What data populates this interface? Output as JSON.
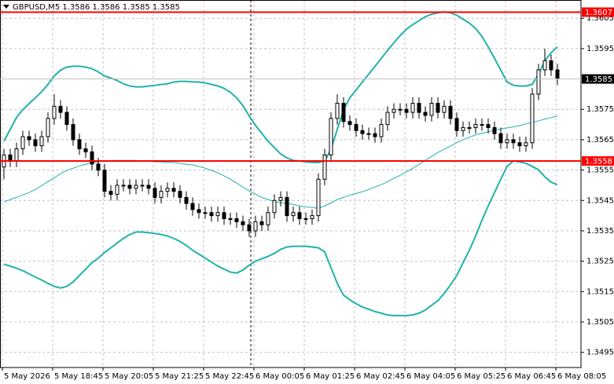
{
  "chart_data": {
    "type": "candlestick",
    "title": "GBPUSD,M5  1.3586 1.3586 1.3585 1.3585",
    "categories": [
      "5 May 2026",
      null,
      null,
      null,
      null,
      null,
      null,
      null,
      "5 May 18:45",
      null,
      null,
      null,
      null,
      null,
      null,
      null,
      "5 May 20:05",
      null,
      null,
      null,
      null,
      null,
      null,
      null,
      "5 May 21:25",
      null,
      null,
      null,
      null,
      null,
      null,
      null,
      "5 May 22:45",
      null,
      null,
      null,
      null,
      null,
      null,
      null,
      "6 May 00:05",
      null,
      null,
      null,
      null,
      null,
      null,
      null,
      "6 May 01:25",
      null,
      null,
      null,
      null,
      null,
      null,
      null,
      "6 May 02:45",
      null,
      null,
      null,
      null,
      null,
      null,
      null,
      "6 May 04:05",
      null,
      null,
      null,
      null,
      null,
      null,
      null,
      "6 May 05:25",
      null,
      null,
      null,
      null,
      null,
      null,
      null,
      "6 May 06:45",
      null,
      null,
      null,
      null,
      null,
      null,
      null,
      "6 May 08:05"
    ],
    "open": [
      1.3556,
      1.356,
      1.3558,
      1.3562,
      1.3566,
      1.3565,
      1.3563,
      1.3566,
      1.3572,
      1.3576,
      1.3574,
      1.357,
      1.3565,
      1.3562,
      1.3561,
      1.3557,
      1.3555,
      1.3548,
      1.3547,
      1.355,
      1.355,
      1.3549,
      1.355,
      1.355,
      1.3549,
      1.3546,
      1.3548,
      1.3549,
      1.3548,
      1.3546,
      1.3544,
      1.3542,
      1.3541,
      1.3541,
      1.354,
      1.3541,
      1.3539,
      1.3539,
      1.3538,
      1.3537,
      1.3535,
      1.3538,
      1.3537,
      1.3541,
      1.3545,
      1.3546,
      1.354,
      1.3541,
      1.3539,
      1.3539,
      1.354,
      1.3552,
      1.356,
      1.3572,
      1.3577,
      1.3571,
      1.357,
      1.3568,
      1.3567,
      1.3567,
      1.3566,
      1.357,
      1.3574,
      1.3575,
      1.3575,
      1.3574,
      1.3577,
      1.3574,
      1.3573,
      1.3577,
      1.3574,
      1.3576,
      1.3572,
      1.3568,
      1.3569,
      1.3569,
      1.357,
      1.357,
      1.3569,
      1.3567,
      1.3564,
      1.3565,
      1.3564,
      1.3563,
      1.3564,
      1.358,
      1.3588,
      1.3591,
      1.3588
    ],
    "high": [
      1.3562,
      1.3562,
      1.3564,
      1.3568,
      1.3568,
      1.3567,
      1.3568,
      1.3574,
      1.358,
      1.3578,
      1.3576,
      1.3572,
      1.3567,
      1.3564,
      1.3563,
      1.3559,
      1.3557,
      1.355,
      1.3552,
      1.3552,
      1.3552,
      1.3552,
      1.3552,
      1.3552,
      1.3551,
      1.355,
      1.3551,
      1.3551,
      1.355,
      1.3548,
      1.3546,
      1.3544,
      1.3543,
      1.3543,
      1.3543,
      1.3543,
      1.3541,
      1.3541,
      1.354,
      1.3539,
      1.354,
      1.354,
      1.3543,
      1.3547,
      1.3548,
      1.3548,
      1.3543,
      1.3543,
      1.3541,
      1.3542,
      1.3554,
      1.3562,
      1.3574,
      1.358,
      1.3579,
      1.3573,
      1.3572,
      1.357,
      1.3569,
      1.3569,
      1.3572,
      1.3576,
      1.3577,
      1.3577,
      1.3577,
      1.3579,
      1.3579,
      1.3576,
      1.3579,
      1.3579,
      1.3578,
      1.3578,
      1.3574,
      1.3571,
      1.3571,
      1.3572,
      1.3572,
      1.3572,
      1.3571,
      1.3569,
      1.3567,
      1.3567,
      1.3566,
      1.3566,
      1.3582,
      1.359,
      1.3595,
      1.3593,
      1.359
    ],
    "low": [
      1.3552,
      1.3556,
      1.3556,
      1.356,
      1.3563,
      1.3561,
      1.3561,
      1.3564,
      1.357,
      1.3572,
      1.3568,
      1.3563,
      1.356,
      1.3559,
      1.3555,
      1.3553,
      1.3546,
      1.3545,
      1.3545,
      1.3548,
      1.3547,
      1.3547,
      1.3548,
      1.3547,
      1.3544,
      1.3544,
      1.3546,
      1.3546,
      1.3544,
      1.3542,
      1.354,
      1.3539,
      1.3539,
      1.3538,
      1.3538,
      1.3537,
      1.3537,
      1.3536,
      1.3535,
      1.3533,
      1.3533,
      1.3535,
      1.3535,
      1.3539,
      1.3543,
      1.3538,
      1.3538,
      1.3537,
      1.3537,
      1.3537,
      1.3538,
      1.355,
      1.3558,
      1.357,
      1.3569,
      1.3568,
      1.3566,
      1.3565,
      1.3565,
      1.3564,
      1.3564,
      1.3568,
      1.3572,
      1.3573,
      1.3572,
      1.3572,
      1.3572,
      1.3571,
      1.3571,
      1.3572,
      1.3572,
      1.357,
      1.3566,
      1.3566,
      1.3567,
      1.3567,
      1.3568,
      1.3567,
      1.3565,
      1.3562,
      1.3562,
      1.3562,
      1.3561,
      1.3561,
      1.3562,
      1.3578,
      1.3586,
      1.3586,
      1.3583
    ],
    "close": [
      1.356,
      1.3558,
      1.3562,
      1.3566,
      1.3565,
      1.3563,
      1.3566,
      1.3572,
      1.3576,
      1.3574,
      1.357,
      1.3565,
      1.3562,
      1.3561,
      1.3557,
      1.3555,
      1.3548,
      1.3547,
      1.355,
      1.355,
      1.3549,
      1.355,
      1.355,
      1.3549,
      1.3546,
      1.3548,
      1.3549,
      1.3548,
      1.3546,
      1.3544,
      1.3542,
      1.3541,
      1.3541,
      1.354,
      1.3541,
      1.3539,
      1.3539,
      1.3538,
      1.3537,
      1.3535,
      1.3538,
      1.3537,
      1.3541,
      1.3545,
      1.3546,
      1.354,
      1.3541,
      1.3539,
      1.3539,
      1.354,
      1.3552,
      1.356,
      1.3572,
      1.3577,
      1.3571,
      1.357,
      1.3568,
      1.3567,
      1.3567,
      1.3566,
      1.357,
      1.3574,
      1.3575,
      1.3575,
      1.3574,
      1.3577,
      1.3574,
      1.3573,
      1.3577,
      1.3574,
      1.3576,
      1.3572,
      1.3568,
      1.3569,
      1.3569,
      1.357,
      1.357,
      1.3569,
      1.3567,
      1.3564,
      1.3565,
      1.3564,
      1.3563,
      1.3564,
      1.358,
      1.3588,
      1.3591,
      1.3588,
      1.3585
    ],
    "bands": {
      "upper": [
        1.35645,
        1.35684,
        1.35723,
        1.35749,
        1.35769,
        1.35788,
        1.35808,
        1.35832,
        1.3586,
        1.35879,
        1.35889,
        1.35892,
        1.35892,
        1.35889,
        1.35884,
        1.35873,
        1.3586,
        1.35853,
        1.35845,
        1.35834,
        1.35827,
        1.35824,
        1.35824,
        1.35827,
        1.35829,
        1.35832,
        1.35834,
        1.3584,
        1.35842,
        1.35842,
        1.3584,
        1.3584,
        1.35837,
        1.35832,
        1.35827,
        1.35819,
        1.35806,
        1.35788,
        1.35762,
        1.35728,
        1.35697,
        1.35671,
        1.35645,
        1.35624,
        1.35603,
        1.3559,
        1.35582,
        1.3558,
        1.35577,
        1.35575,
        1.35575,
        1.3558,
        1.35619,
        1.35684,
        1.35749,
        1.35788,
        1.35814,
        1.3584,
        1.35866,
        1.35892,
        1.35918,
        1.35944,
        1.35969,
        1.35993,
        1.36014,
        1.36029,
        1.36042,
        1.36055,
        1.36063,
        1.36068,
        1.36071,
        1.36068,
        1.3606,
        1.36047,
        1.36034,
        1.36016,
        1.3599,
        1.35956,
        1.35918,
        1.35879,
        1.3584,
        1.35829,
        1.35827,
        1.35827,
        1.35832,
        1.35866,
        1.3591,
        1.35936,
        1.35956
      ],
      "middle": [
        1.35445,
        1.35453,
        1.3546,
        1.35468,
        1.35476,
        1.35486,
        1.35499,
        1.35512,
        1.35525,
        1.35538,
        1.35549,
        1.35556,
        1.35564,
        1.35569,
        1.35575,
        1.35577,
        1.3558,
        1.35582,
        1.35582,
        1.35582,
        1.35582,
        1.35582,
        1.3558,
        1.3558,
        1.35577,
        1.35577,
        1.35575,
        1.35575,
        1.35572,
        1.35569,
        1.35567,
        1.35562,
        1.35556,
        1.35549,
        1.35541,
        1.35531,
        1.3552,
        1.35507,
        1.35494,
        1.35481,
        1.35471,
        1.3546,
        1.35453,
        1.35447,
        1.35442,
        1.3544,
        1.35437,
        1.35432,
        1.35429,
        1.35427,
        1.35424,
        1.35432,
        1.35442,
        1.35453,
        1.3546,
        1.35468,
        1.35473,
        1.35479,
        1.35486,
        1.35494,
        1.35502,
        1.35512,
        1.35523,
        1.35533,
        1.35544,
        1.35556,
        1.35569,
        1.35582,
        1.35595,
        1.35608,
        1.35619,
        1.35629,
        1.3564,
        1.3565,
        1.35658,
        1.35666,
        1.35671,
        1.35676,
        1.35681,
        1.35686,
        1.35689,
        1.35692,
        1.35697,
        1.35702,
        1.35707,
        1.35712,
        1.35718,
        1.35723,
        1.35728
      ],
      "lower": [
        1.3524,
        1.35234,
        1.35227,
        1.35219,
        1.35208,
        1.35198,
        1.35188,
        1.35177,
        1.35167,
        1.35162,
        1.35167,
        1.35182,
        1.35203,
        1.35224,
        1.35245,
        1.3526,
        1.35279,
        1.35294,
        1.3531,
        1.35325,
        1.35338,
        1.35346,
        1.35346,
        1.35344,
        1.35341,
        1.35338,
        1.35333,
        1.35325,
        1.35315,
        1.35302,
        1.35286,
        1.35273,
        1.3526,
        1.35247,
        1.35234,
        1.35224,
        1.35214,
        1.35211,
        1.35221,
        1.35237,
        1.3525,
        1.35258,
        1.35266,
        1.35276,
        1.35289,
        1.35297,
        1.35299,
        1.35299,
        1.35299,
        1.35297,
        1.35294,
        1.35281,
        1.35229,
        1.35177,
        1.35138,
        1.35123,
        1.3511,
        1.35099,
        1.35092,
        1.35084,
        1.35079,
        1.35073,
        1.35071,
        1.35071,
        1.35071,
        1.35073,
        1.35079,
        1.35089,
        1.35105,
        1.3512,
        1.35144,
        1.35172,
        1.35203,
        1.35245,
        1.35286,
        1.35333,
        1.35385,
        1.35432,
        1.35476,
        1.3552,
        1.35562,
        1.3558,
        1.35577,
        1.35572,
        1.35562,
        1.35551,
        1.35528,
        1.3551,
        1.35502
      ]
    },
    "band_color": "#20b2aa",
    "candle_color": "#000000",
    "hlines": [
      1.3607,
      1.3558
    ],
    "hline_color": "#ff0000",
    "current_price": 1.3585,
    "ylim": [
      1.349,
      1.3611
    ],
    "yticks": [
      1.3605,
      1.3595,
      1.3575,
      1.3565,
      1.3555,
      1.3545,
      1.3535,
      1.3525,
      1.3515,
      1.3505,
      1.3495
    ],
    "grid": true
  }
}
